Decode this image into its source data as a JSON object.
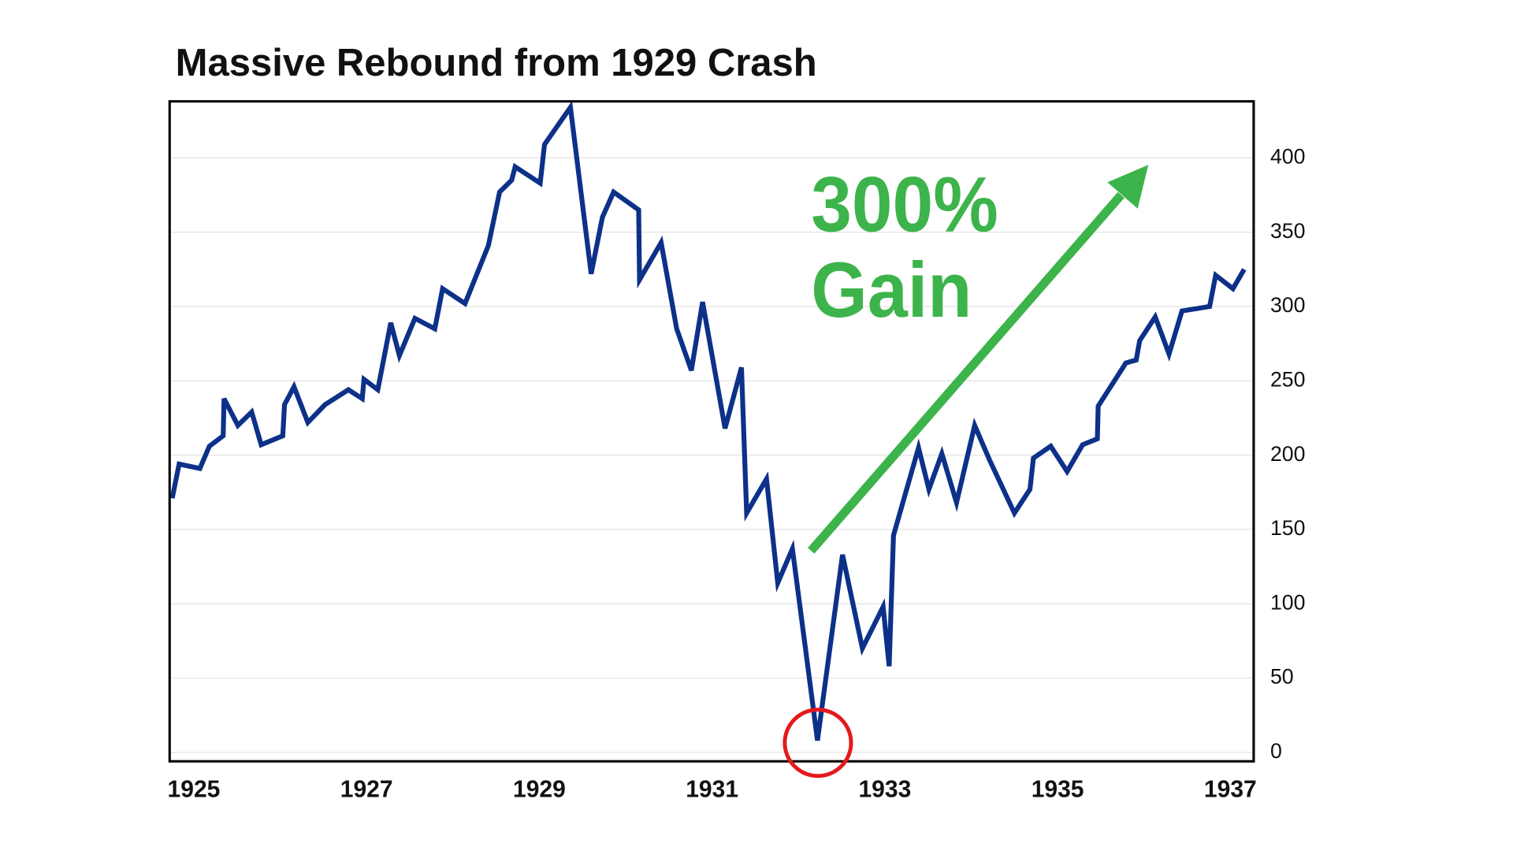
{
  "chart_data": {
    "type": "line",
    "title": "Massive Rebound from 1929 Crash",
    "annotations": [
      "300%",
      "Gain"
    ],
    "x": [
      1924.75,
      1924.83,
      1925.07,
      1925.18,
      1925.34,
      1925.35,
      1925.51,
      1925.67,
      1925.78,
      1926.03,
      1926.05,
      1926.16,
      1926.32,
      1926.52,
      1926.79,
      1926.95,
      1926.97,
      1927.13,
      1927.28,
      1927.38,
      1927.56,
      1927.79,
      1927.88,
      1928.14,
      1928.41,
      1928.54,
      1928.68,
      1928.72,
      1929.01,
      1929.06,
      1929.36,
      1929.6,
      1929.73,
      1929.86,
      1930.15,
      1930.16,
      1930.41,
      1930.59,
      1930.76,
      1930.89,
      1931.15,
      1931.34,
      1931.4,
      1931.63,
      1931.76,
      1931.93,
      1932.22,
      1932.51,
      1932.74,
      1932.98,
      1933.05,
      1933.1,
      1933.39,
      1933.51,
      1933.66,
      1933.83,
      1934.04,
      1934.21,
      1934.5,
      1934.68,
      1934.72,
      1934.92,
      1935.11,
      1935.29,
      1935.46,
      1935.47,
      1935.79,
      1935.91,
      1935.95,
      1936.13,
      1936.29,
      1936.44,
      1936.76,
      1936.83,
      1937.03,
      1937.16
    ],
    "series": [
      {
        "color": "#0d3189",
        "values": [
          171,
          194,
          191,
          206,
          213,
          238,
          220,
          229,
          207,
          213,
          234,
          246,
          222,
          234,
          244,
          238,
          251,
          244,
          289,
          267,
          292,
          285,
          312,
          302,
          341,
          377,
          385,
          394,
          383,
          409,
          434,
          322,
          360,
          377,
          365,
          318,
          343,
          285,
          257,
          303,
          218,
          259,
          161,
          184,
          114,
          137,
          8,
          133,
          70,
          98,
          58,
          146,
          205,
          177,
          201,
          168,
          220,
          197,
          161,
          177,
          198,
          206,
          189,
          207,
          211,
          233,
          262,
          264,
          277,
          293,
          268,
          297,
          300,
          321,
          312,
          325
        ]
      }
    ],
    "xlim": [
      1924.72,
      1937.27
    ],
    "xticks": [
      1925,
      1927,
      1929,
      1931,
      1933,
      1935,
      1937
    ],
    "ylim": [
      -6,
      438
    ],
    "yticks": [
      0,
      50,
      100,
      150,
      200,
      250,
      300,
      350,
      400
    ],
    "grid": true
  }
}
